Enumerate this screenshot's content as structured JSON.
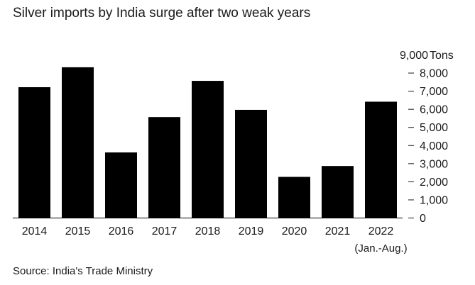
{
  "chart_data": {
    "type": "bar",
    "title": "Silver imports by India surge after two weak years",
    "source": "Source: India's Trade Ministry",
    "unit_label": "Tons",
    "categories": [
      "2014",
      "2015",
      "2016",
      "2017",
      "2018",
      "2019",
      "2020",
      "2021",
      "2022"
    ],
    "category_sublabels": [
      "",
      "",
      "",
      "",
      "",
      "",
      "",
      "",
      "(Jan.-Aug.)"
    ],
    "values": [
      7200,
      8300,
      3600,
      5550,
      7550,
      5950,
      2250,
      2850,
      6400
    ],
    "ylim": [
      0,
      9000
    ],
    "yticks": [
      0,
      1000,
      2000,
      3000,
      4000,
      5000,
      6000,
      7000,
      8000,
      9000
    ],
    "ytick_labels": [
      "0",
      "1,000",
      "2,000",
      "3,000",
      "4,000",
      "5,000",
      "6,000",
      "7,000",
      "8,000",
      "9,000"
    ],
    "xlabel": "",
    "ylabel": "Tons",
    "grid": false,
    "bar_color": "#000000"
  }
}
